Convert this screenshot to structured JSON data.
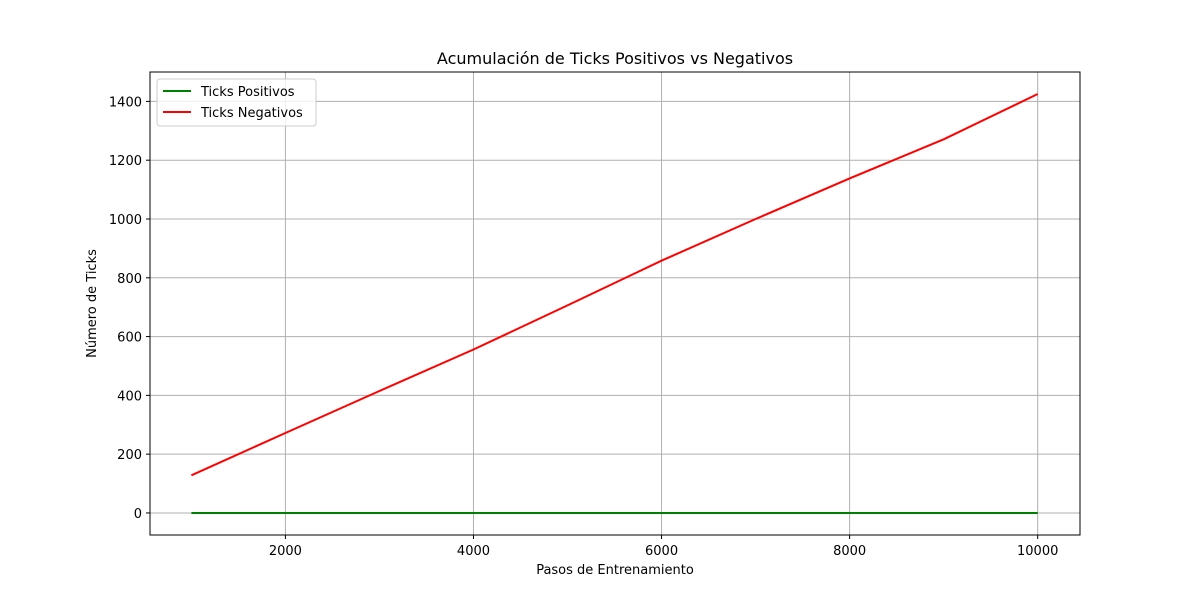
{
  "chart_data": {
    "type": "line",
    "title": "Acumulación de Ticks Positivos vs Negativos",
    "xlabel": "Pasos de Entrenamiento",
    "ylabel": "Número de Ticks",
    "xlim": [
      560,
      10450
    ],
    "ylim": [
      -75,
      1500
    ],
    "xticks": [
      2000,
      4000,
      6000,
      8000,
      10000
    ],
    "yticks": [
      0,
      200,
      400,
      600,
      800,
      1000,
      1200,
      1400
    ],
    "grid": true,
    "legend_position": "top-left",
    "series": [
      {
        "name": "Ticks Positivos",
        "color": "#008000",
        "x": [
          1000,
          2000,
          3000,
          4000,
          5000,
          6000,
          7000,
          8000,
          9000,
          10000
        ],
        "y": [
          0,
          0,
          0,
          0,
          0,
          0,
          0,
          0,
          0,
          0
        ]
      },
      {
        "name": "Ticks Negativos",
        "color": "#ff0000",
        "x": [
          1000,
          2000,
          3000,
          4000,
          5000,
          6000,
          7000,
          8000,
          9000,
          10000
        ],
        "y": [
          128,
          272,
          415,
          556,
          706,
          858,
          1000,
          1138,
          1271,
          1425
        ]
      }
    ]
  }
}
